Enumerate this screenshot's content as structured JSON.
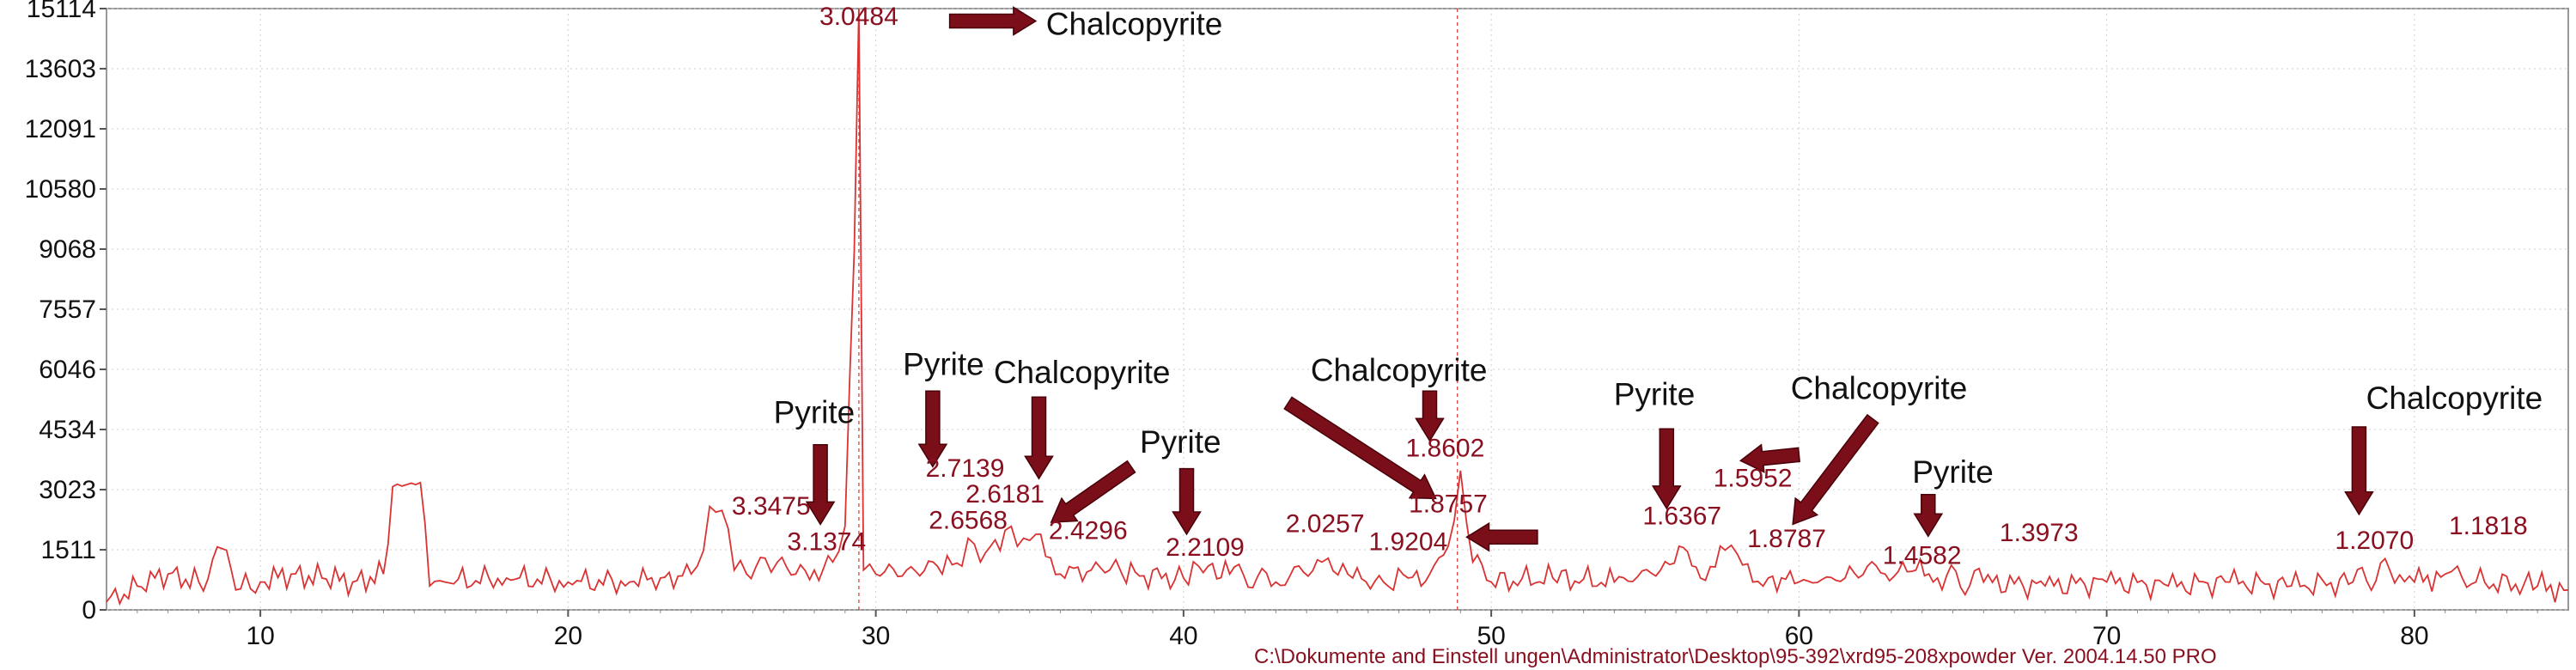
{
  "chart_data": {
    "type": "line",
    "title": "",
    "xlabel": "",
    "ylabel": "",
    "xlim": [
      5,
      85
    ],
    "ylim": [
      0,
      15114
    ],
    "x_ticks": [
      10,
      20,
      30,
      40,
      50,
      60,
      70,
      80
    ],
    "y_ticks": [
      0,
      1511,
      3023,
      4534,
      6046,
      7557,
      9068,
      10580,
      12091,
      13603,
      15114
    ],
    "grid": "dotted",
    "colors": {
      "trace": "#d93333",
      "label": "#8a1020",
      "arrow": "#7a0f1a"
    },
    "series": [
      {
        "x": [
          5.0,
          6.0,
          7.0,
          8.0,
          8.9,
          9.2,
          10.0,
          11.0,
          12.0,
          13.0,
          14.0,
          14.3,
          15.2,
          15.5,
          16.0,
          18.0,
          20.0,
          22.0,
          23.0,
          24.0,
          24.2,
          24.6,
          25.0,
          25.4,
          25.8,
          26.4,
          26.8,
          27.4,
          28.0,
          28.6,
          29.0,
          29.3,
          29.45,
          29.6,
          30.0,
          31.0,
          32.0,
          32.8,
          33.0,
          33.4,
          34.2,
          34.4,
          34.8,
          35.2,
          36.0,
          37.0,
          37.6,
          38.0,
          40.0,
          40.8,
          41.5,
          43.0,
          44.5,
          44.7,
          45.5,
          46.5,
          47.3,
          48.0,
          48.6,
          49.0,
          49.4,
          50.0,
          52.0,
          54.0,
          55.5,
          56.1,
          56.8,
          57.6,
          58.0,
          58.5,
          59.0,
          60.0,
          61.5,
          62.8,
          63.8,
          64.5,
          66.0,
          68.0,
          70.0,
          72.0,
          74.0,
          76.0,
          78.0,
          79.2,
          80.0,
          81.0,
          81.4,
          82.0,
          84.0,
          85.0
        ],
        "values": [
          200,
          600,
          900,
          700,
          1500,
          500,
          700,
          900,
          800,
          700,
          900,
          3100,
          3200,
          600,
          700,
          800,
          700,
          700,
          800,
          900,
          1100,
          2600,
          2500,
          1000,
          900,
          1300,
          1200,
          900,
          1000,
          1200,
          2100,
          9000,
          15114,
          1000,
          900,
          1000,
          1100,
          1100,
          1800,
          1200,
          2000,
          2100,
          1800,
          1900,
          900,
          1000,
          1000,
          900,
          800,
          1100,
          900,
          700,
          1200,
          1300,
          800,
          700,
          800,
          900,
          1600,
          3500,
          1200,
          700,
          800,
          700,
          1000,
          1600,
          800,
          1500,
          1400,
          700,
          800,
          700,
          800,
          900,
          1000,
          800,
          700,
          600,
          700,
          600,
          700,
          600,
          700,
          1000,
          700,
          900,
          1100,
          700,
          600,
          500
        ]
      }
    ],
    "peak_labels": [
      {
        "text": "3.0484",
        "x": 29.45,
        "y": 14700
      },
      {
        "text": "3.3475",
        "x": 26.6,
        "y": 2400
      },
      {
        "text": "3.1374",
        "x": 28.4,
        "y": 1500
      },
      {
        "text": "2.7139",
        "x": 32.9,
        "y": 3350
      },
      {
        "text": "2.6181",
        "x": 34.2,
        "y": 2700
      },
      {
        "text": "2.6568",
        "x": 33.0,
        "y": 2040
      },
      {
        "text": "2.4296",
        "x": 36.9,
        "y": 1780
      },
      {
        "text": "2.2109",
        "x": 40.7,
        "y": 1360
      },
      {
        "text": "2.0257",
        "x": 44.6,
        "y": 1950
      },
      {
        "text": "1.9204",
        "x": 47.3,
        "y": 1500
      },
      {
        "text": "1.8757",
        "x": 48.6,
        "y": 2450
      },
      {
        "text": "1.8602",
        "x": 48.5,
        "y": 3850
      },
      {
        "text": "1.6367",
        "x": 56.2,
        "y": 2150
      },
      {
        "text": "1.5952",
        "x": 58.5,
        "y": 3100
      },
      {
        "text": "1.8787",
        "x": 59.6,
        "y": 1580
      },
      {
        "text": "1.4582",
        "x": 64.0,
        "y": 1150
      },
      {
        "text": "1.3973",
        "x": 67.8,
        "y": 1730
      },
      {
        "text": "1.2070",
        "x": 78.7,
        "y": 1530
      },
      {
        "text": "1.1818",
        "x": 82.4,
        "y": 1900
      }
    ],
    "mineral_labels": [
      {
        "text": "Chalcopyrite",
        "x": 38.4,
        "y": 14460
      },
      {
        "text": "Pyrite",
        "x": 28.0,
        "y": 4700
      },
      {
        "text": "Pyrite",
        "x": 32.2,
        "y": 5900
      },
      {
        "text": "Chalcopyrite",
        "x": 36.7,
        "y": 5700
      },
      {
        "text": "Pyrite",
        "x": 39.9,
        "y": 3950
      },
      {
        "text": "Chalcopyrite",
        "x": 47.0,
        "y": 5750
      },
      {
        "text": "Pyrite",
        "x": 55.3,
        "y": 5150
      },
      {
        "text": "Chalcopyrite",
        "x": 62.6,
        "y": 5300
      },
      {
        "text": "Pyrite",
        "x": 65.0,
        "y": 3200
      },
      {
        "text": "Chalcopyrite",
        "x": 81.3,
        "y": 5050
      }
    ],
    "arrows": [
      {
        "x": 28.2,
        "y_from": 4150,
        "y_to": 2150
      },
      {
        "x": 31.85,
        "y_from": 5500,
        "y_to": 3600
      },
      {
        "x": 35.3,
        "y_from": 5350,
        "y_to": 3300
      },
      {
        "x": 40.1,
        "y_from": 3550,
        "y_to": 1900
      },
      {
        "x": 48.0,
        "y_from": 5500,
        "y_to": 4250
      },
      {
        "x": 55.7,
        "y_from": 4550,
        "y_to": 2550
      },
      {
        "x": 64.2,
        "y_from": 2900,
        "y_to": 1850
      },
      {
        "x": 78.2,
        "y_from": 4600,
        "y_to": 2400
      },
      {
        "x_from": 32.4,
        "y_from": 14800,
        "x_to": 35.2,
        "y_to": 14800
      },
      {
        "x_from": 51.5,
        "y_from": 1830,
        "x_to": 49.2,
        "y_to": 1830
      },
      {
        "x_from": 43.4,
        "y_from": 5200,
        "x_to": 48.2,
        "y_to": 2800
      },
      {
        "x_from": 38.3,
        "y_from": 3600,
        "x_to": 35.7,
        "y_to": 2200
      },
      {
        "x_from": 60.0,
        "y_from": 3900,
        "x_to": 58.1,
        "y_to": 3750
      },
      {
        "x_from": 62.4,
        "y_from": 4800,
        "x_to": 59.8,
        "y_to": 2150
      }
    ],
    "markers": [
      {
        "x": 29.45,
        "text": ""
      },
      {
        "x": 48.9,
        "text": ""
      }
    ]
  },
  "footer_text": "C:\\Dokumente and Einstell ungen\\Administrator\\Desktop\\95-392\\xrd95-208xpowder Ver. 2004.14.50 PRO"
}
